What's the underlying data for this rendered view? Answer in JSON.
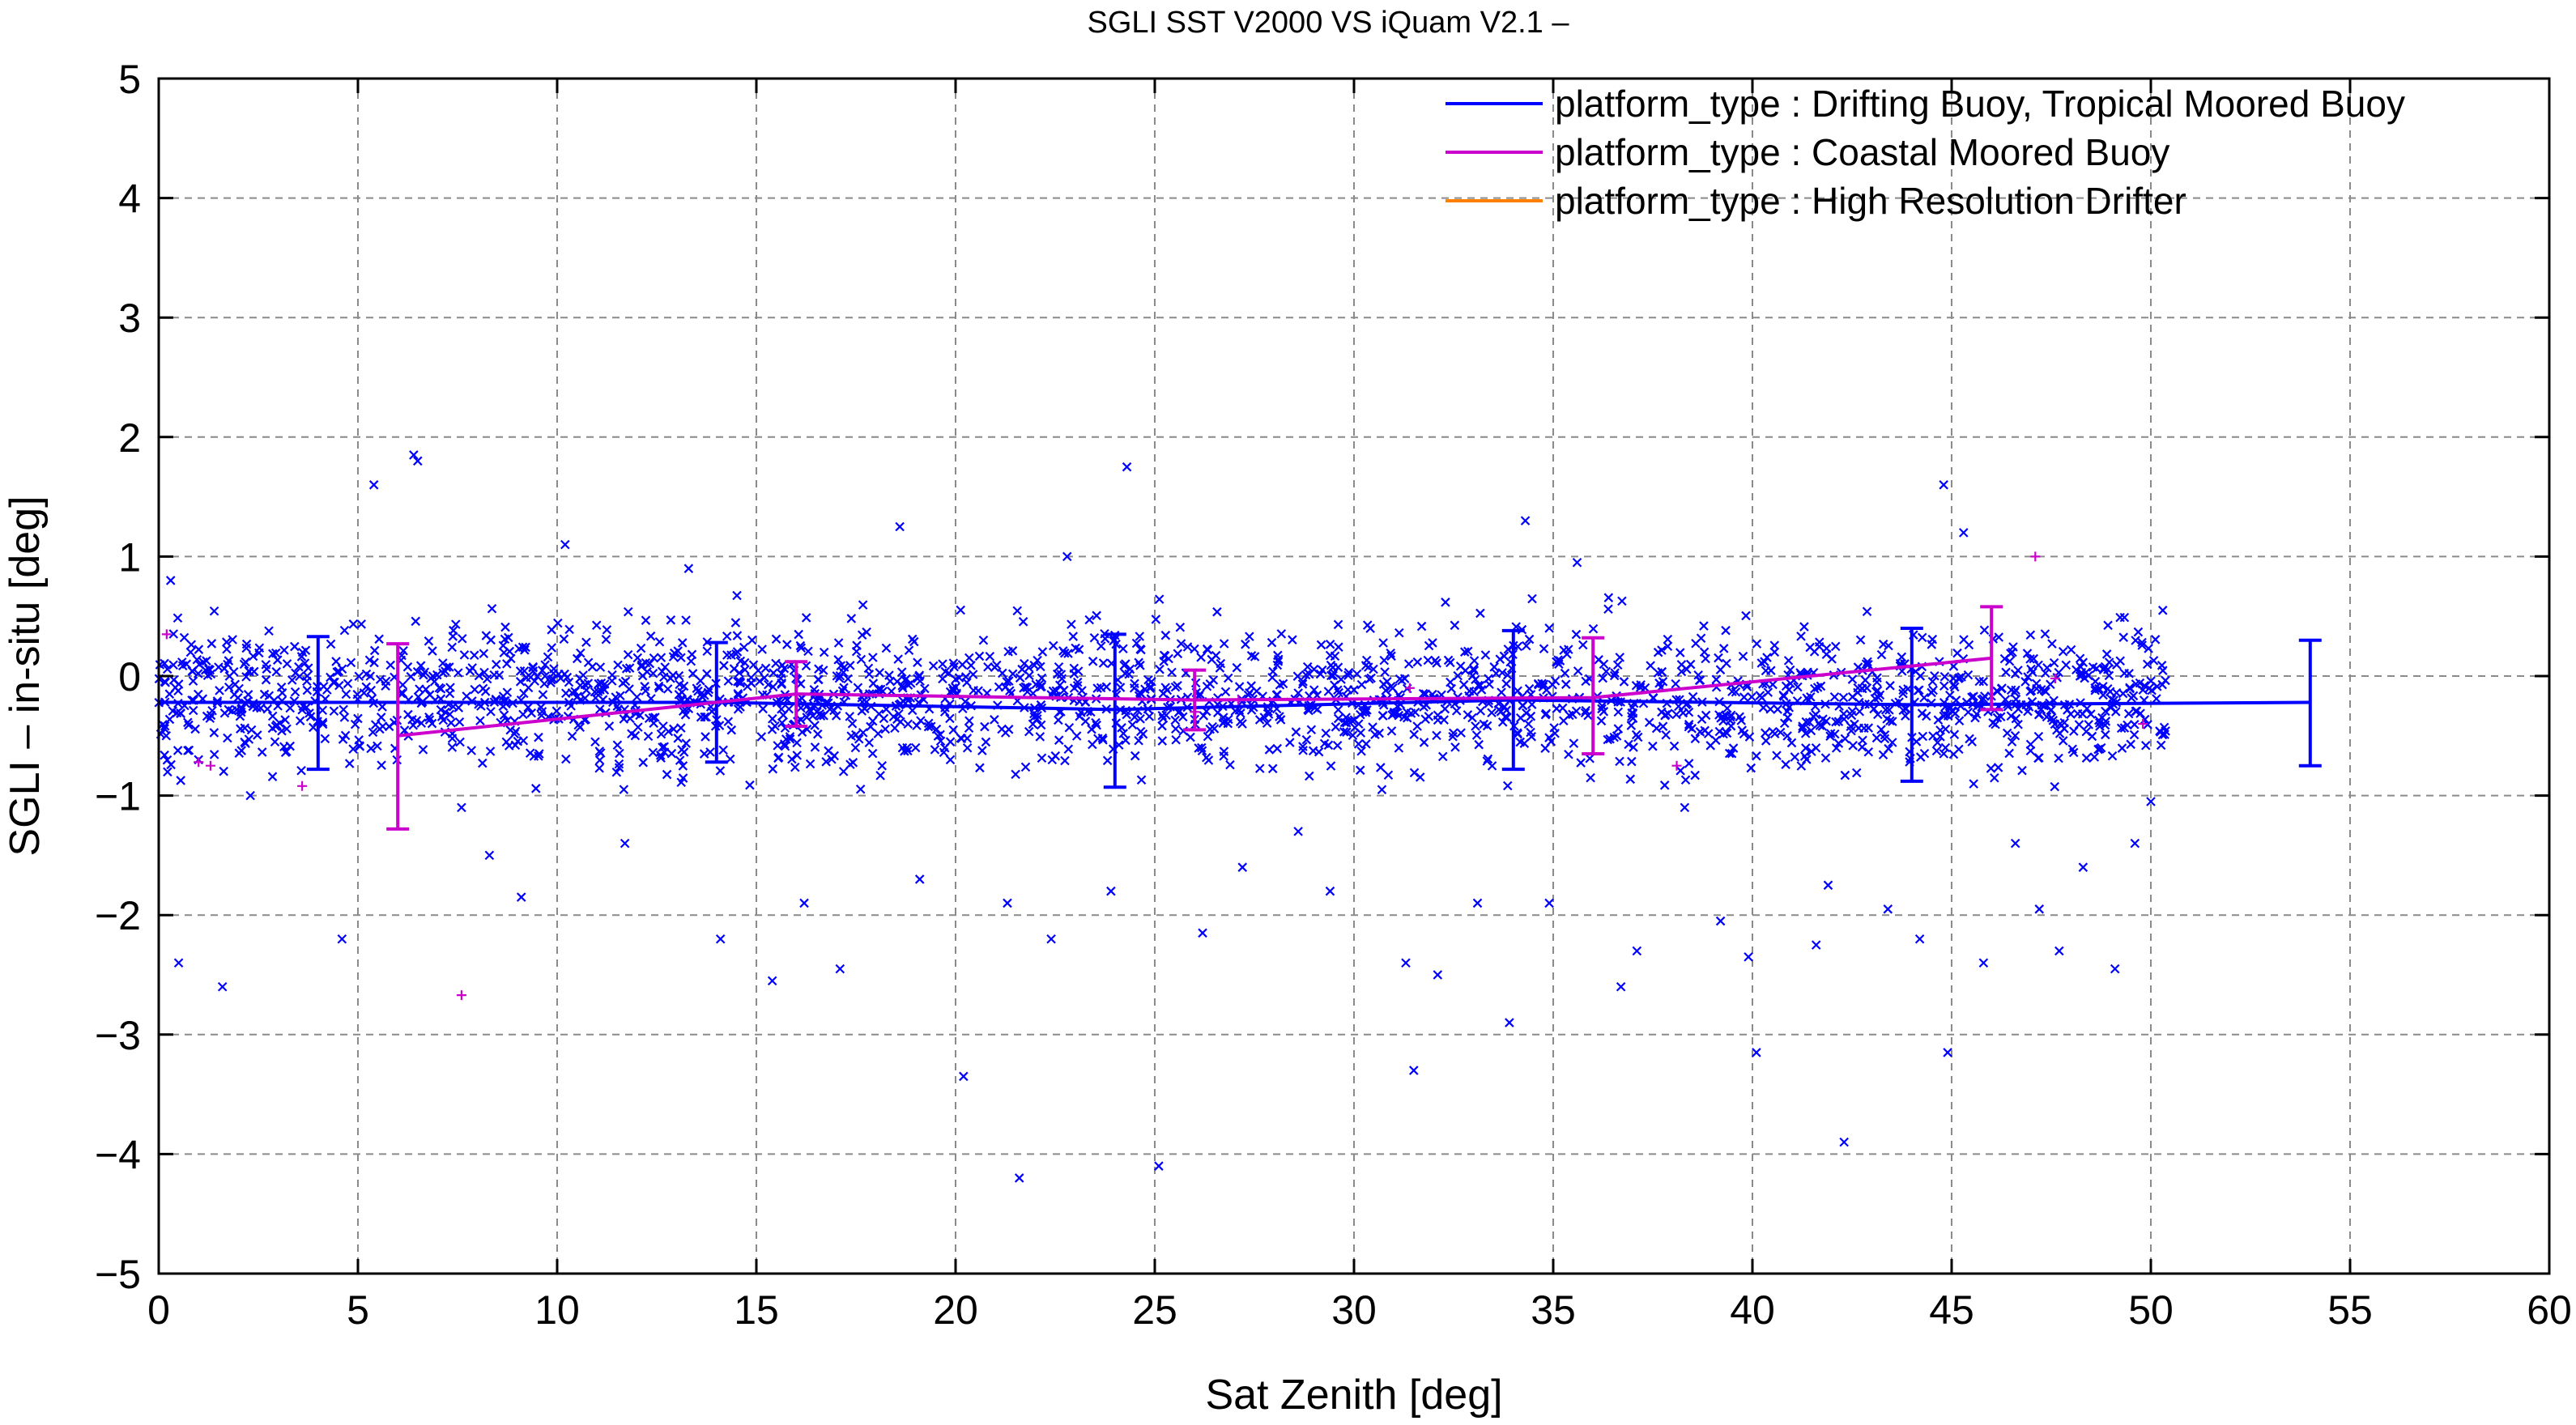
{
  "chart_data": {
    "type": "scatter",
    "title": "SGLI SST V2000 VS iQuam V2.1  –",
    "xlabel": "Sat Zenith [deg]",
    "ylabel": "SGLI – in-situ [deg]",
    "xlim": [
      0,
      60
    ],
    "ylim": [
      -5,
      5
    ],
    "xticks": [
      0,
      5,
      10,
      15,
      20,
      25,
      30,
      35,
      40,
      45,
      50,
      55,
      60
    ],
    "xtick_labels": [
      "0",
      "5",
      "10",
      "15",
      "20",
      "25",
      "30",
      "35",
      "40",
      "45",
      "50",
      "55",
      "60"
    ],
    "yticks": [
      -5,
      -4,
      -3,
      -2,
      -1,
      0,
      1,
      2,
      3,
      4,
      5
    ],
    "ytick_labels": [
      "−5",
      "−4",
      "−3",
      "−2",
      "−1",
      "0",
      "1",
      "2",
      "3",
      "4",
      "5"
    ],
    "grid": true,
    "legend_position": "top-right",
    "series": [
      {
        "name": "platform_type : Drifting Buoy, Tropical Moored Buoy",
        "color": "#0000ff",
        "marker": "x",
        "mean_x": [
          4,
          14,
          24,
          34,
          44,
          54
        ],
        "mean_y": [
          -0.22,
          -0.22,
          -0.28,
          -0.2,
          -0.24,
          -0.22
        ],
        "err_low": [
          -0.78,
          -0.72,
          -0.93,
          -0.78,
          -0.88,
          -0.75
        ],
        "err_high": [
          0.33,
          0.28,
          0.35,
          0.38,
          0.4,
          0.3
        ],
        "scatter_x": [
          0.3,
          0.5,
          0.8,
          1.0,
          1.6,
          2.3,
          4.6,
          5.4,
          6.5,
          6.4,
          7.6,
          8.3,
          9.1,
          10.2,
          11.7,
          13.3,
          14.1,
          15.4,
          16.2,
          17.1,
          18.6,
          19.1,
          20.2,
          20.7,
          21.3,
          21.6,
          22.4,
          22.8,
          23.9,
          24.3,
          25.1,
          26.2,
          27.2,
          28.6,
          29.4,
          30.7,
          31.3,
          31.5,
          32.1,
          33.1,
          33.9,
          34.3,
          34.9,
          35.6,
          36.7,
          37.1,
          38.3,
          39.2,
          39.9,
          40.1,
          41.6,
          41.9,
          42.3,
          43.4,
          44.2,
          44.8,
          44.9,
          45.3,
          45.8,
          46.6,
          47.2,
          47.7,
          48.3,
          49.1,
          49.6,
          50.0,
          50.3
        ],
        "scatter_y": [
          0.8,
          -2.4,
          0.2,
          -0.7,
          -2.6,
          -1.0,
          -2.2,
          1.6,
          1.8,
          1.85,
          -1.1,
          -1.5,
          -1.85,
          1.1,
          -1.4,
          0.9,
          -2.2,
          -2.55,
          -1.9,
          -2.45,
          1.25,
          -1.7,
          -3.35,
          0.3,
          -1.9,
          -4.2,
          -2.2,
          1.0,
          -1.8,
          1.75,
          -4.1,
          -2.15,
          -1.6,
          -1.3,
          -1.8,
          -0.95,
          -2.4,
          -3.3,
          -2.5,
          -1.9,
          -2.9,
          1.3,
          -1.9,
          0.95,
          -2.6,
          -2.3,
          -1.1,
          -2.05,
          -2.35,
          -3.15,
          -2.25,
          -1.75,
          -3.9,
          -1.95,
          -2.2,
          1.6,
          -3.15,
          1.2,
          -2.4,
          -1.4,
          -1.95,
          -2.3,
          -1.6,
          -2.45,
          -1.4,
          -1.05,
          0.55
        ]
      },
      {
        "name": "platform_type : Coastal Moored Buoy",
        "color": "#cc00cc",
        "marker": "+",
        "mean_x": [
          6,
          16,
          26,
          36,
          46
        ],
        "mean_y": [
          -0.5,
          -0.15,
          -0.2,
          -0.18,
          0.15
        ],
        "err_low": [
          -1.28,
          -0.42,
          -0.45,
          -0.65,
          -0.28
        ],
        "err_high": [
          0.27,
          0.12,
          0.05,
          0.32,
          0.58
        ],
        "scatter_x": [
          0.2,
          1.0,
          1.3,
          3.6,
          7.6,
          26.0,
          27.1,
          31.4,
          38.1,
          47.1,
          47.6,
          49.8
        ],
        "scatter_y": [
          0.35,
          -0.72,
          -0.75,
          -0.92,
          -2.67,
          -0.3,
          -0.2,
          -0.1,
          -0.75,
          1.0,
          -0.02,
          -0.4
        ]
      },
      {
        "name": "platform_type : High Resolution Drifter",
        "color": "#ff8000",
        "marker": "none",
        "mean_x": [],
        "mean_y": []
      }
    ]
  }
}
